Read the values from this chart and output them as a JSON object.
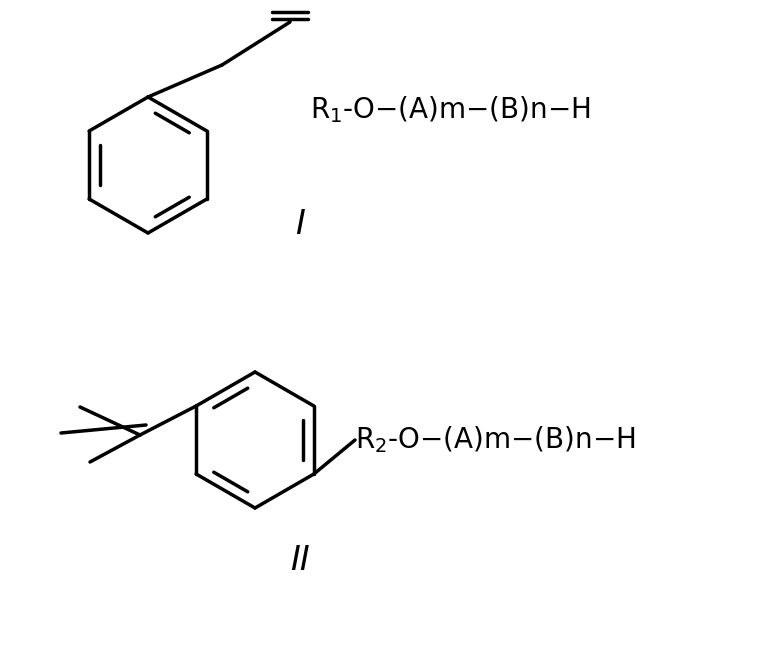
{
  "bg_color": "#ffffff",
  "line_color": "#000000",
  "lw": 2.5,
  "fig_width": 7.76,
  "fig_height": 6.55,
  "label_I": "I",
  "label_II": "II",
  "formula_I": "R₁-O—(A)m—(B)n—H",
  "formula_II": "R₂-O—(A)m—(B)n—H"
}
